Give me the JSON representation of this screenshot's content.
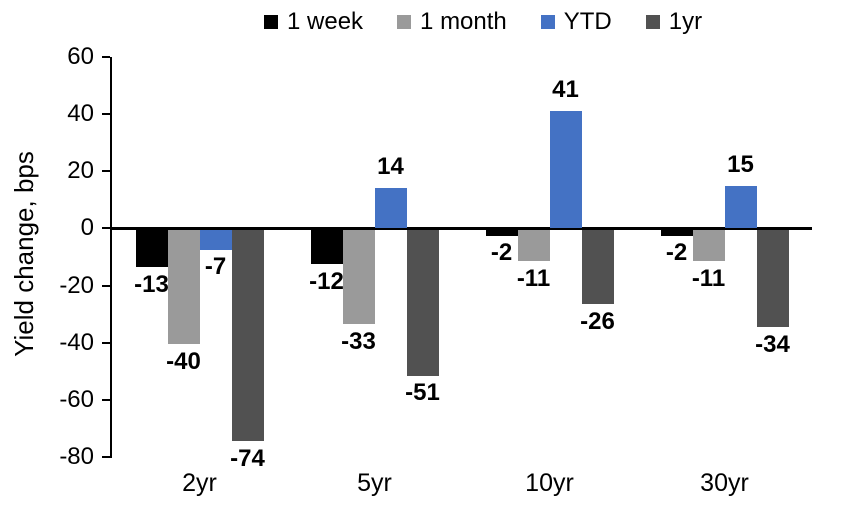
{
  "chart_data": {
    "type": "bar",
    "title": "",
    "ylabel": "Yield change, bps",
    "xlabel": "",
    "categories": [
      "2yr",
      "5yr",
      "10yr",
      "30yr"
    ],
    "series": [
      {
        "name": "1 week",
        "color": "#000000",
        "values": [
          -13,
          -12,
          -2,
          -2
        ]
      },
      {
        "name": "1 month",
        "color": "#9A9A9A",
        "values": [
          -40,
          -33,
          -11,
          -11
        ]
      },
      {
        "name": "YTD",
        "color": "#4472C4",
        "values": [
          -7,
          14,
          41,
          15
        ]
      },
      {
        "name": "1yr",
        "color": "#515151",
        "values": [
          -74,
          -51,
          -26,
          -34
        ]
      }
    ],
    "ylim": [
      -80,
      60
    ],
    "yticks": [
      60,
      40,
      20,
      0,
      -20,
      -40,
      -60,
      -80
    ],
    "grid": false,
    "legend_position": "top",
    "data_labels": true,
    "axis_color": "#000000",
    "text_color": "#000000",
    "background_color": "#ffffff"
  }
}
